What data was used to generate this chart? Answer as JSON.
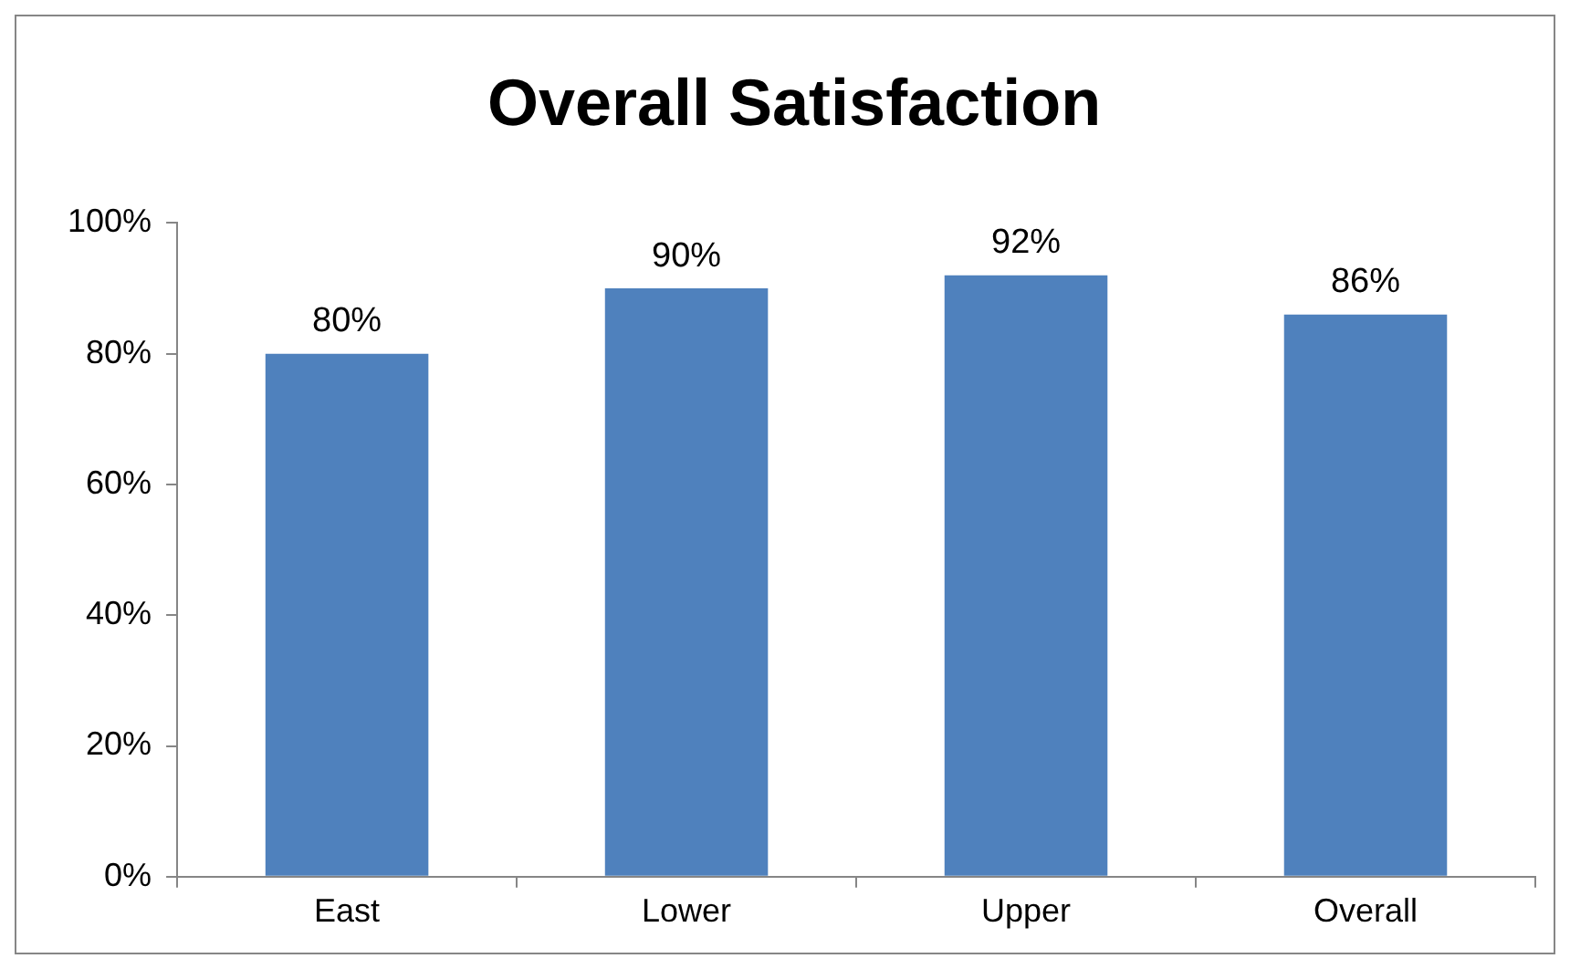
{
  "chart_data": {
    "type": "bar",
    "title": "Overall Satisfaction",
    "categories": [
      "East",
      "Lower",
      "Upper",
      "Overall"
    ],
    "values": [
      80,
      90,
      92,
      86
    ],
    "value_labels": [
      "80%",
      "90%",
      "92%",
      "86%"
    ],
    "color": "#4f81bd",
    "ylim": [
      0,
      100
    ],
    "yticks": [
      {
        "value": 0,
        "label": "0%"
      },
      {
        "value": 20,
        "label": "20%"
      },
      {
        "value": 40,
        "label": "40%"
      },
      {
        "value": 60,
        "label": "60%"
      },
      {
        "value": 80,
        "label": "80%"
      },
      {
        "value": 100,
        "label": "100%"
      }
    ],
    "grid": false,
    "legend": false
  }
}
